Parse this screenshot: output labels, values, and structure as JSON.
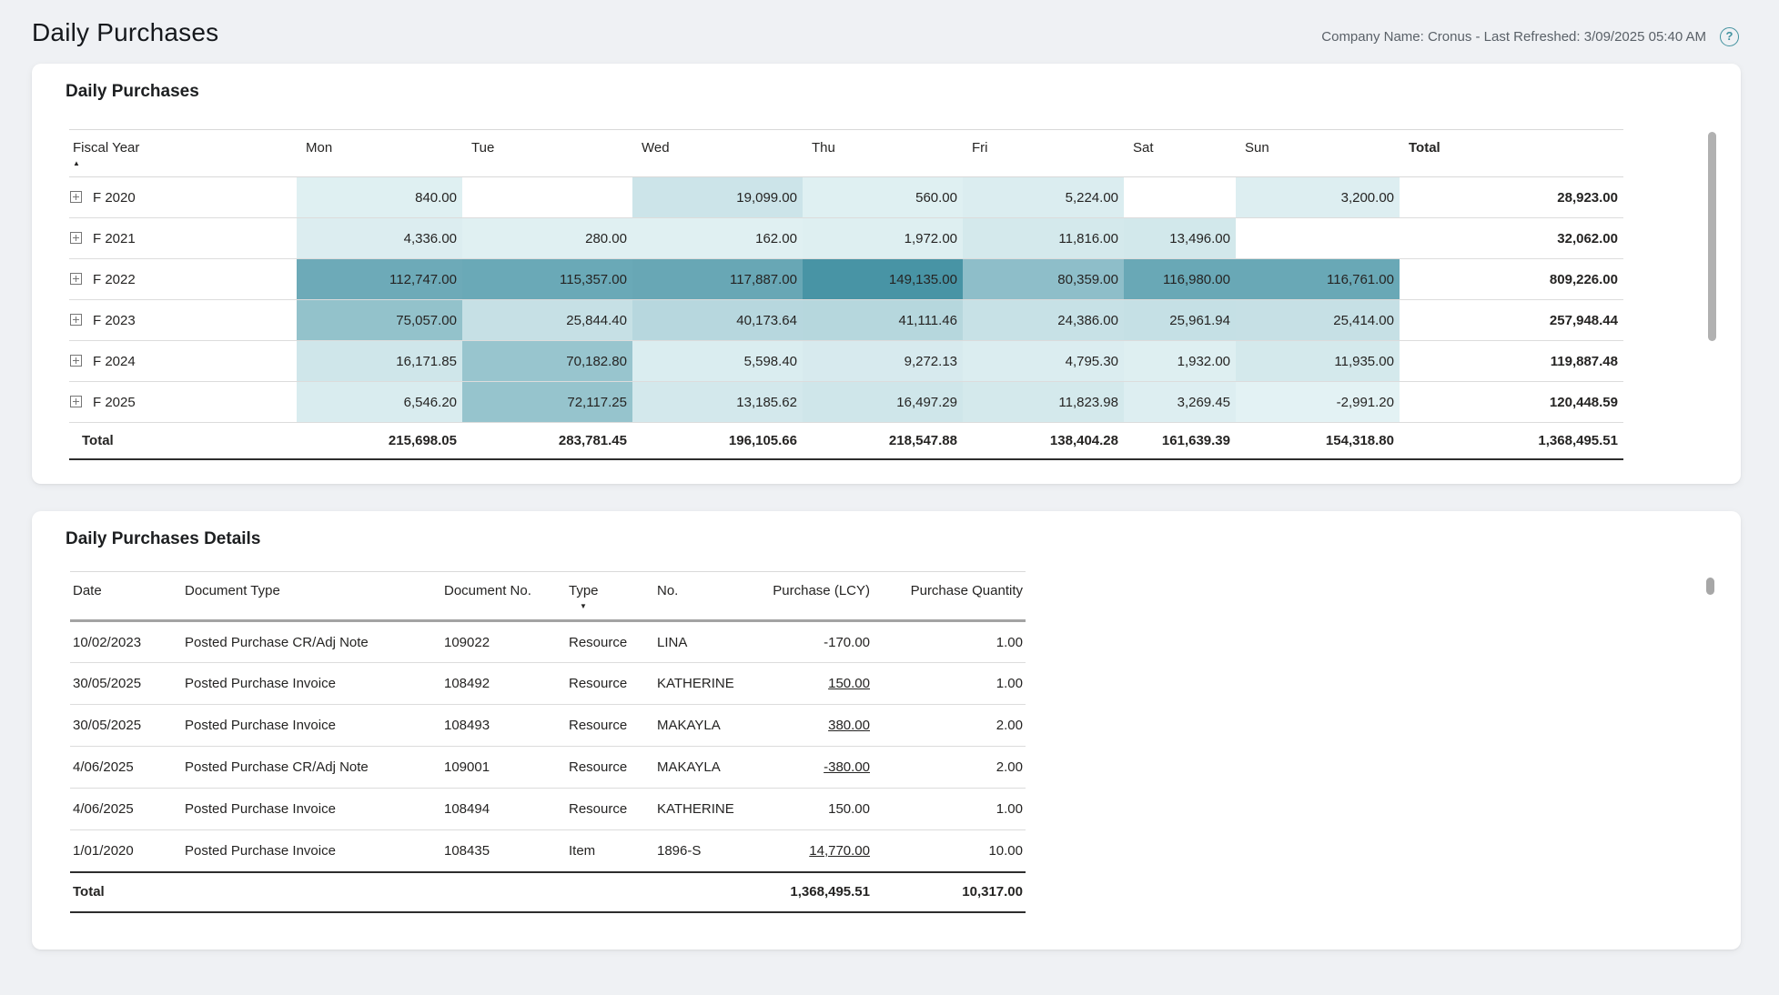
{
  "page": {
    "title": "Daily Purchases",
    "company_text": "Company Name: Cronus - Last Refreshed: 3/09/2025 05:40 AM",
    "help_glyph": "?"
  },
  "icons": {
    "sort_asc": "▲",
    "sort_desc": "▼",
    "expand": "plus-box"
  },
  "matrix": {
    "title": "Daily Purchases",
    "columns": [
      "Fiscal Year",
      "Mon",
      "Tue",
      "Wed",
      "Thu",
      "Fri",
      "Sat",
      "Sun",
      "Total"
    ],
    "sort_column": "Fiscal Year",
    "sort_direction": "asc",
    "heat": {
      "min": -2991.2,
      "max": 149135.0,
      "min_color": "#e3f2f4",
      "max_color": "#4894a5"
    },
    "rows": [
      {
        "label": "F 2020",
        "cells": [
          "840.00",
          "",
          "19,099.00",
          "560.00",
          "5,224.00",
          "",
          "3,200.00"
        ],
        "total": "28,923.00"
      },
      {
        "label": "F 2021",
        "cells": [
          "4,336.00",
          "280.00",
          "162.00",
          "1,972.00",
          "11,816.00",
          "13,496.00",
          ""
        ],
        "total": "32,062.00"
      },
      {
        "label": "F 2022",
        "cells": [
          "112,747.00",
          "115,357.00",
          "117,887.00",
          "149,135.00",
          "80,359.00",
          "116,980.00",
          "116,761.00"
        ],
        "total": "809,226.00"
      },
      {
        "label": "F 2023",
        "cells": [
          "75,057.00",
          "25,844.40",
          "40,173.64",
          "41,111.46",
          "24,386.00",
          "25,961.94",
          "25,414.00"
        ],
        "total": "257,948.44"
      },
      {
        "label": "F 2024",
        "cells": [
          "16,171.85",
          "70,182.80",
          "5,598.40",
          "9,272.13",
          "4,795.30",
          "1,932.00",
          "11,935.00"
        ],
        "total": "119,887.48"
      },
      {
        "label": "F 2025",
        "cells": [
          "6,546.20",
          "72,117.25",
          "13,185.62",
          "16,497.29",
          "11,823.98",
          "3,269.45",
          "-2,991.20"
        ],
        "total": "120,448.59"
      }
    ],
    "grand_total": {
      "label": "Total",
      "cells": [
        "215,698.05",
        "283,781.45",
        "196,105.66",
        "218,547.88",
        "138,404.28",
        "161,639.39",
        "154,318.80"
      ],
      "total": "1,368,495.51"
    }
  },
  "details": {
    "title": "Daily Purchases Details",
    "columns": [
      "Date",
      "Document Type",
      "Document No.",
      "Type",
      "No.",
      "Purchase (LCY)",
      "Purchase Quantity"
    ],
    "sort_column": "Type",
    "sort_direction": "desc",
    "rows": [
      {
        "date": "10/02/2023",
        "document_type": "Posted Purchase CR/Adj Note",
        "document_no": "109022",
        "type": "Resource",
        "no": "LINA",
        "purchase": "-170.00",
        "purchase_link": false,
        "quantity": "1.00"
      },
      {
        "date": "30/05/2025",
        "document_type": "Posted Purchase Invoice",
        "document_no": "108492",
        "type": "Resource",
        "no": "KATHERINE",
        "purchase": "150.00",
        "purchase_link": true,
        "quantity": "1.00"
      },
      {
        "date": "30/05/2025",
        "document_type": "Posted Purchase Invoice",
        "document_no": "108493",
        "type": "Resource",
        "no": "MAKAYLA",
        "purchase": "380.00",
        "purchase_link": true,
        "quantity": "2.00"
      },
      {
        "date": "4/06/2025",
        "document_type": "Posted Purchase CR/Adj Note",
        "document_no": "109001",
        "type": "Resource",
        "no": "MAKAYLA",
        "purchase": "-380.00",
        "purchase_link": true,
        "quantity": "2.00"
      },
      {
        "date": "4/06/2025",
        "document_type": "Posted Purchase Invoice",
        "document_no": "108494",
        "type": "Resource",
        "no": "KATHERINE",
        "purchase": "150.00",
        "purchase_link": false,
        "quantity": "1.00"
      },
      {
        "date": "1/01/2020",
        "document_type": "Posted Purchase Invoice",
        "document_no": "108435",
        "type": "Item",
        "no": "1896-S",
        "purchase": "14,770.00",
        "purchase_link": true,
        "quantity": "10.00"
      }
    ],
    "grand_total": {
      "label": "Total",
      "purchase": "1,368,495.51",
      "quantity": "10,317.00"
    }
  }
}
